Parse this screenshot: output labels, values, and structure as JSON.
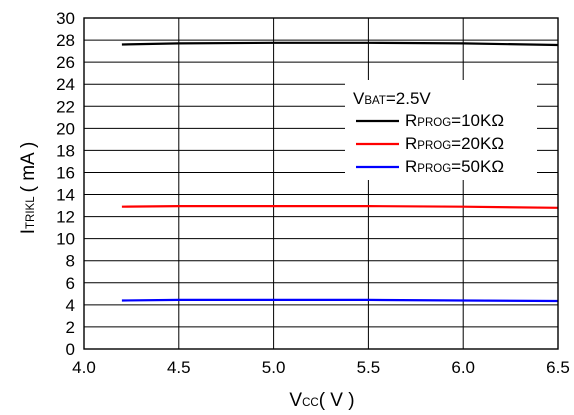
{
  "chart_data": {
    "type": "line",
    "xlabel": {
      "main": "V",
      "sub": "CC",
      "suffix": "( V )"
    },
    "ylabel": {
      "main": "I",
      "sub": "TRIKL",
      "suffix": "( mA )"
    },
    "xlim": [
      4.0,
      6.5
    ],
    "ylim": [
      0,
      30
    ],
    "x_ticks": [
      "4.0",
      "4.5",
      "5.0",
      "5.5",
      "6.0",
      "6.5"
    ],
    "y_ticks": [
      "0",
      "2",
      "4",
      "6",
      "8",
      "10",
      "12",
      "14",
      "16",
      "18",
      "20",
      "22",
      "24",
      "26",
      "28",
      "30"
    ],
    "x_tick_values": [
      4.0,
      4.5,
      5.0,
      5.5,
      6.0,
      6.5
    ],
    "y_tick_values": [
      0,
      2,
      4,
      6,
      8,
      10,
      12,
      14,
      16,
      18,
      20,
      22,
      24,
      26,
      28,
      30
    ],
    "grid": true,
    "legend_position": "top-right",
    "annotation": {
      "main": "V",
      "sub": "BAT",
      "suffix": "=2.5V"
    },
    "series": [
      {
        "name": "RPROG=10KΩ",
        "label_main": "R",
        "label_sub": "PROG",
        "label_suffix": "=10KΩ",
        "color": "#000000",
        "x": [
          4.2,
          4.5,
          5.0,
          5.5,
          6.0,
          6.5
        ],
        "y": [
          27.6,
          27.7,
          27.75,
          27.75,
          27.7,
          27.55
        ]
      },
      {
        "name": "RPROG=20KΩ",
        "label_main": "R",
        "label_sub": "PROG",
        "label_suffix": "=20KΩ",
        "color": "#ff0000",
        "x": [
          4.2,
          4.5,
          5.0,
          5.5,
          6.0,
          6.5
        ],
        "y": [
          12.9,
          12.95,
          12.95,
          12.95,
          12.9,
          12.8
        ]
      },
      {
        "name": "RPROG=50KΩ",
        "label_main": "R",
        "label_sub": "PROG",
        "label_suffix": "=50KΩ",
        "color": "#0000ff",
        "x": [
          4.2,
          4.5,
          5.0,
          5.5,
          6.0,
          6.5
        ],
        "y": [
          4.4,
          4.45,
          4.45,
          4.45,
          4.4,
          4.35
        ]
      }
    ]
  }
}
